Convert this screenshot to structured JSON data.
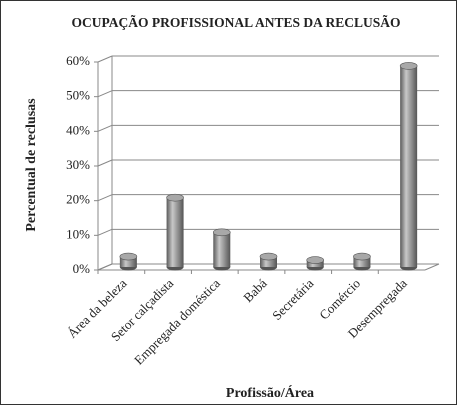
{
  "chart_data": {
    "type": "bar",
    "title": "OCUPAÇÃO PROFISSIONAL ANTES DA RECLUSÃO",
    "x_label": "Profissão/Área",
    "y_label": "Percentual de reclusas",
    "categories": [
      "Área da beleza",
      "Setor calçadista",
      "Empregada doméstica",
      "Babá",
      "Secretária",
      "Comércio",
      "Desempregada"
    ],
    "values": [
      3,
      20,
      10,
      3,
      2,
      3,
      58
    ],
    "color": "#8c8c8c",
    "ylim": [
      0,
      60
    ],
    "yticks": [
      {
        "value": 0,
        "label": "0%"
      },
      {
        "value": 10,
        "label": "10%"
      },
      {
        "value": 20,
        "label": "20%"
      },
      {
        "value": 30,
        "label": "30%"
      },
      {
        "value": 40,
        "label": "40%"
      },
      {
        "value": 50,
        "label": "50%"
      },
      {
        "value": 60,
        "label": "60%"
      }
    ],
    "grid": true
  }
}
